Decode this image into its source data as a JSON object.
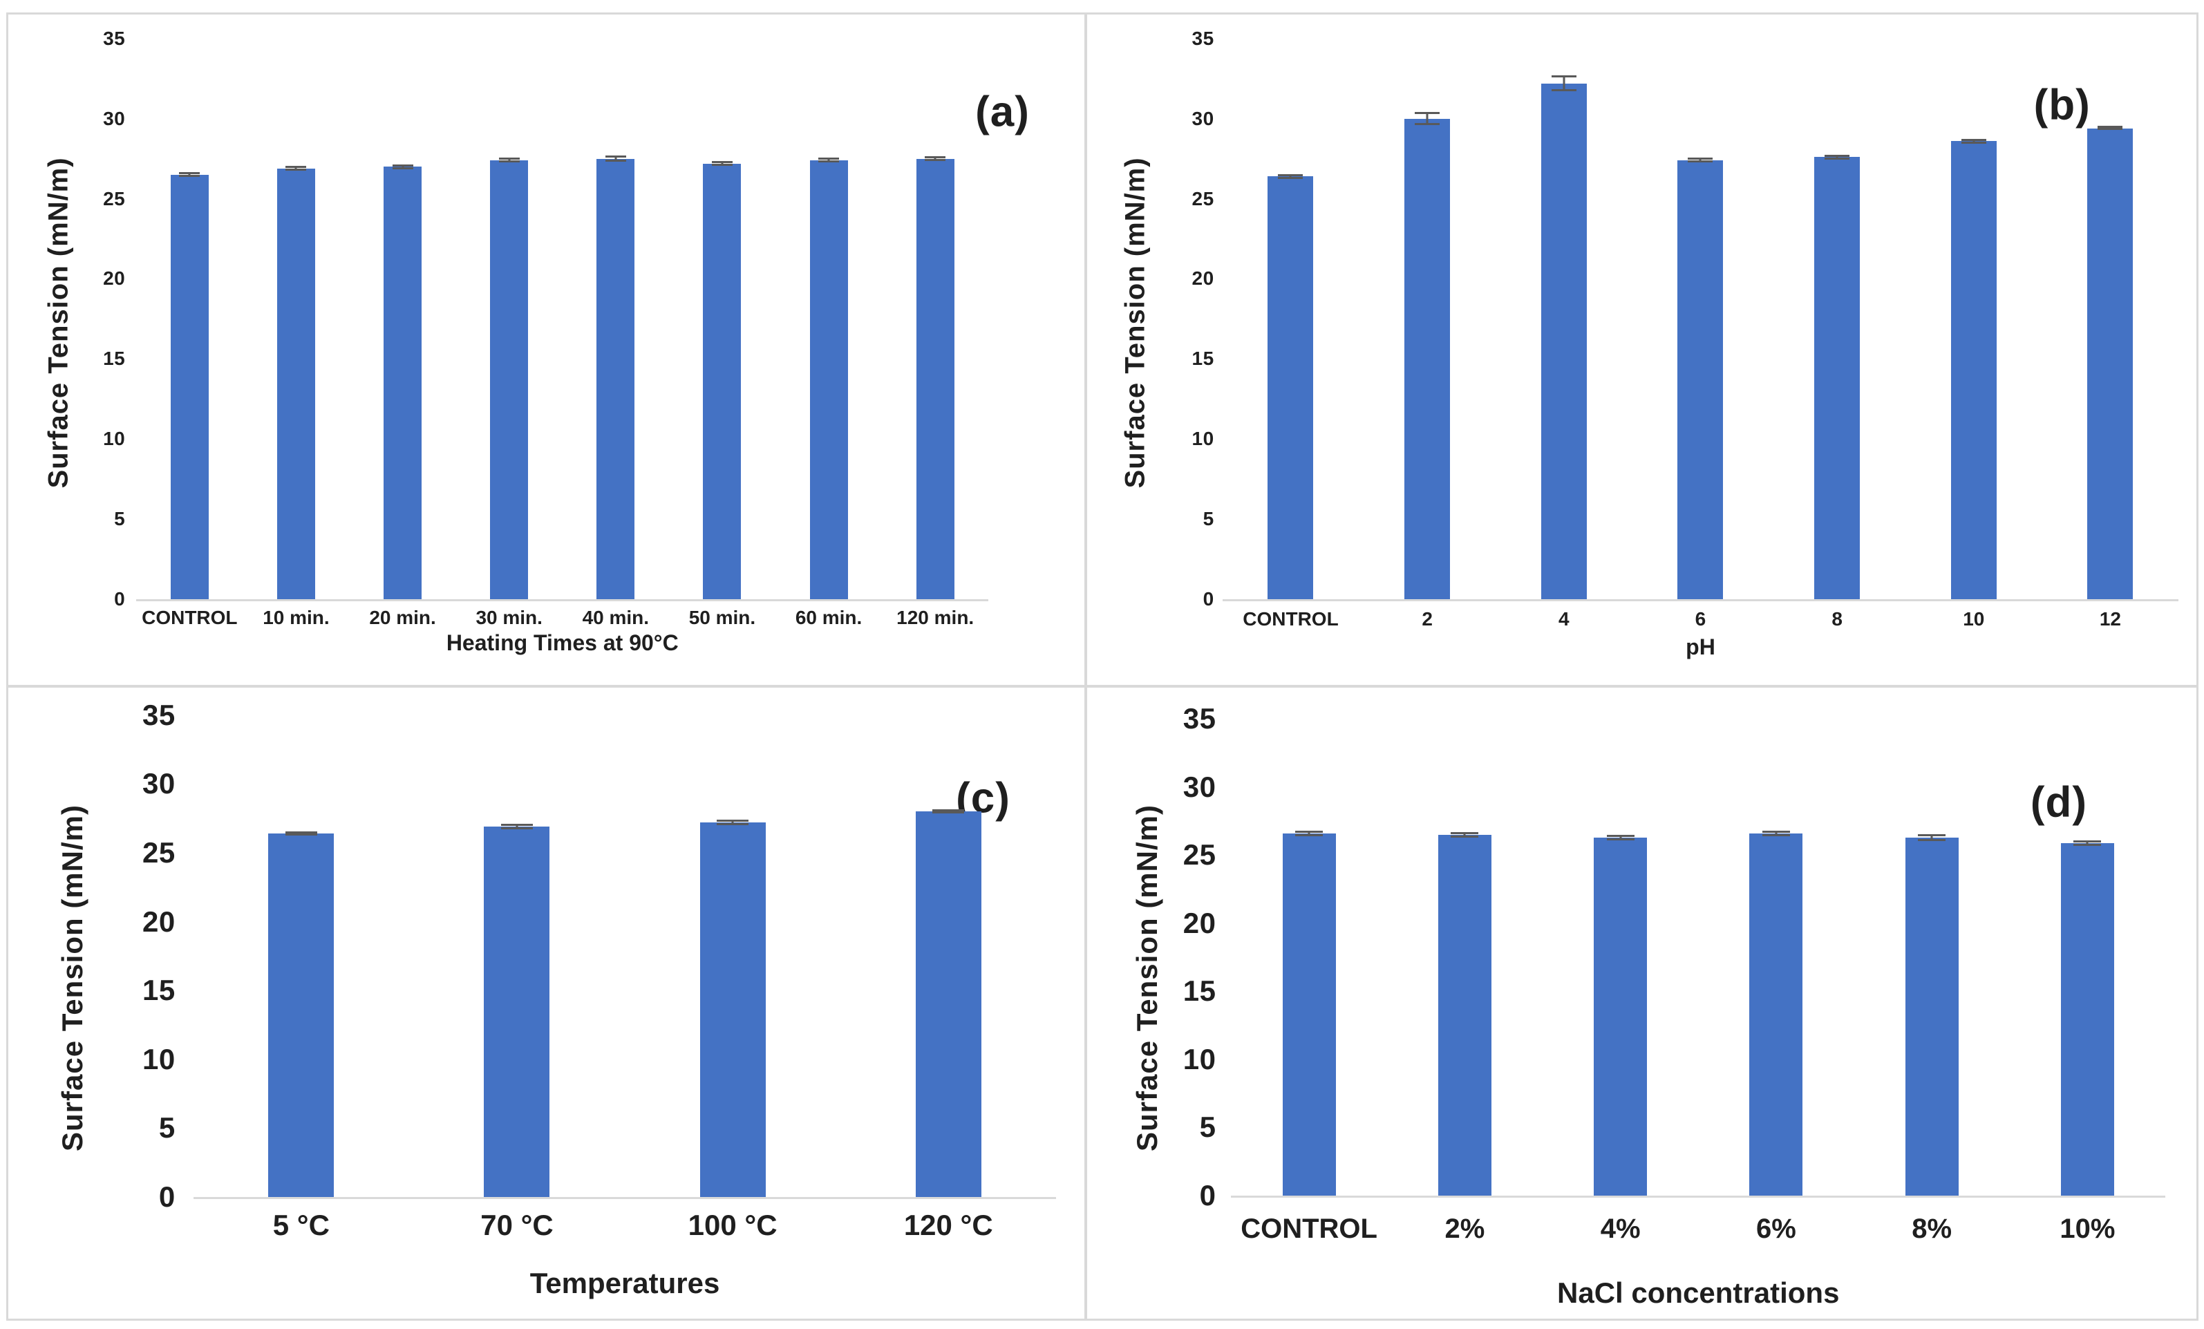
{
  "figure": {
    "background": "#ffffff",
    "border_color": "#d9d9d9",
    "bar_color": "#4472c4",
    "error_bar_color": "#595959",
    "baseline_color": "#d9d9d9",
    "text_color": "#1f1f1f"
  },
  "chart_data": [
    {
      "type": "bar",
      "panel_label": "(a)",
      "ylabel": "Surface Tension (mN/m)",
      "xlabel": "Heating Times at 90°C",
      "ylim": [
        0,
        35
      ],
      "yticks": [
        0,
        5,
        10,
        15,
        20,
        25,
        30,
        35
      ],
      "grid": false,
      "legend": "none",
      "categories": [
        "CONTROL",
        "10 min.",
        "20 min.",
        "30 min.",
        "40 min.",
        "50 min.",
        "60 min.",
        "120 min."
      ],
      "values": [
        26.5,
        26.9,
        27.0,
        27.4,
        27.5,
        27.2,
        27.4,
        27.5
      ],
      "errors": [
        0.15,
        0.15,
        0.15,
        0.15,
        0.2,
        0.15,
        0.15,
        0.15
      ]
    },
    {
      "type": "bar",
      "panel_label": "(b)",
      "ylabel": "Surface Tension (mN/m)",
      "xlabel": "pH",
      "ylim": [
        0,
        35
      ],
      "yticks": [
        0,
        5,
        10,
        15,
        20,
        25,
        30,
        35
      ],
      "grid": false,
      "legend": "none",
      "categories": [
        "CONTROL",
        "2",
        "4",
        "6",
        "8",
        "10",
        "12"
      ],
      "values": [
        26.4,
        30.0,
        32.2,
        27.4,
        27.6,
        28.6,
        29.4
      ],
      "errors": [
        0.15,
        0.4,
        0.5,
        0.15,
        0.15,
        0.15,
        0.12
      ]
    },
    {
      "type": "bar",
      "panel_label": "(c)",
      "ylabel": "Surface Tension (mN/m)",
      "xlabel": "Temperatures",
      "ylim": [
        0,
        35
      ],
      "yticks": [
        0,
        5,
        10,
        15,
        20,
        25,
        30,
        35
      ],
      "grid": false,
      "legend": "none",
      "categories": [
        "5 °C",
        "70 °C",
        "100 °C",
        "120 °C"
      ],
      "values": [
        26.4,
        26.9,
        27.2,
        28.0
      ],
      "errors": [
        0.15,
        0.2,
        0.2,
        0.15
      ]
    },
    {
      "type": "bar",
      "panel_label": "(d)",
      "ylabel": "Surface Tension (mN/m)",
      "xlabel": "NaCl concentrations",
      "ylim": [
        0,
        35
      ],
      "yticks": [
        0,
        5,
        10,
        15,
        20,
        25,
        30,
        35
      ],
      "grid": false,
      "legend": "none",
      "categories": [
        "CONTROL",
        "2%",
        "4%",
        "6%",
        "8%",
        "10%"
      ],
      "values": [
        26.6,
        26.5,
        26.3,
        26.6,
        26.3,
        25.9
      ],
      "errors": [
        0.2,
        0.2,
        0.2,
        0.2,
        0.25,
        0.2
      ]
    }
  ]
}
